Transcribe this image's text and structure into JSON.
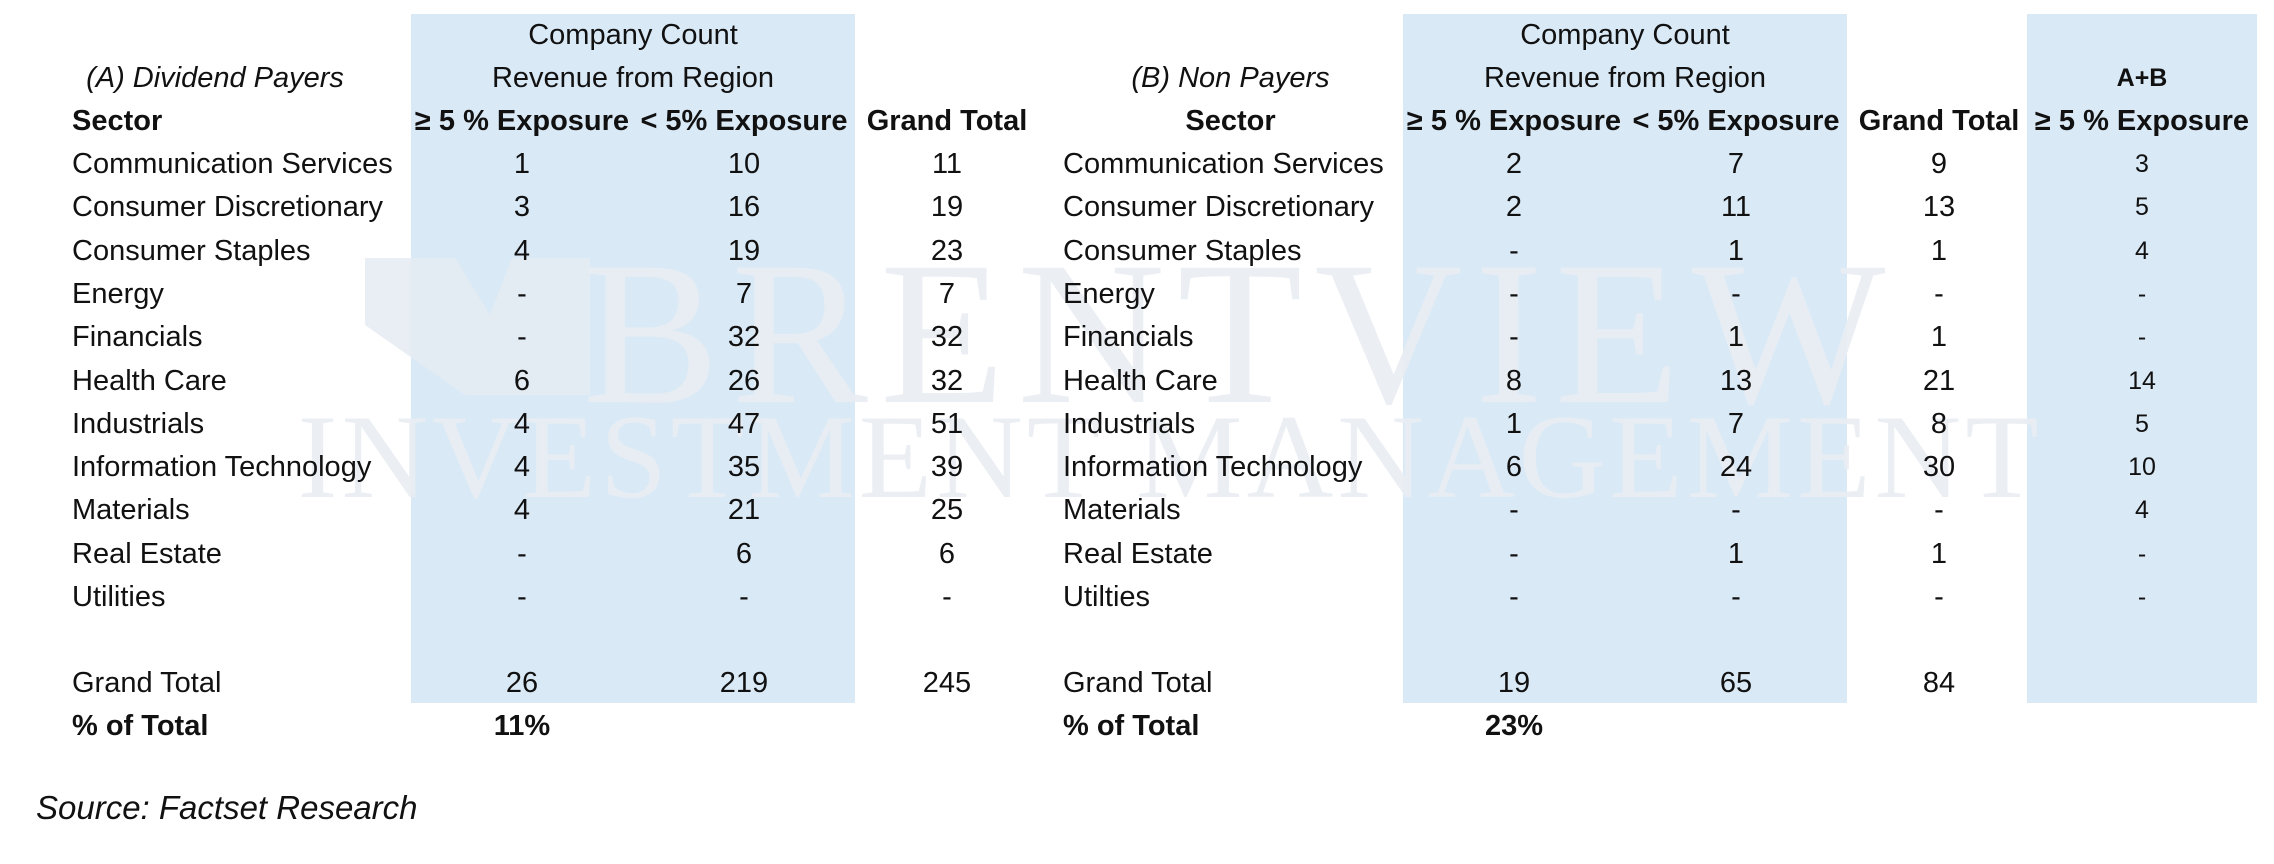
{
  "watermark": {
    "line1": "BRENTVIEW",
    "line2": "INVESTMENT MANAGEMENT"
  },
  "table_a": {
    "title": "(A) Dividend Payers",
    "header_company_count": "Company Count",
    "header_revenue": "Revenue from Region",
    "col_sector": "Sector",
    "col_ge5": "≥ 5 % Exposure",
    "col_lt5": "< 5% Exposure",
    "col_grand": "Grand Total",
    "rows": [
      {
        "sector": "Communication Services",
        "ge5": "1",
        "lt5": "10",
        "total": "11"
      },
      {
        "sector": "Consumer Discretionary",
        "ge5": "3",
        "lt5": "16",
        "total": "19"
      },
      {
        "sector": "Consumer Staples",
        "ge5": "4",
        "lt5": "19",
        "total": "23"
      },
      {
        "sector": "Energy",
        "ge5": "-",
        "lt5": "7",
        "total": "7"
      },
      {
        "sector": "Financials",
        "ge5": "-",
        "lt5": "32",
        "total": "32"
      },
      {
        "sector": "Health Care",
        "ge5": "6",
        "lt5": "26",
        "total": "32"
      },
      {
        "sector": "Industrials",
        "ge5": "4",
        "lt5": "47",
        "total": "51"
      },
      {
        "sector": "Information Technology",
        "ge5": "4",
        "lt5": "35",
        "total": "39"
      },
      {
        "sector": "Materials",
        "ge5": "4",
        "lt5": "21",
        "total": "25"
      },
      {
        "sector": "Real Estate",
        "ge5": "-",
        "lt5": "6",
        "total": "6"
      },
      {
        "sector": "Utilities",
        "ge5": "-",
        "lt5": "-",
        "total": "-"
      }
    ],
    "grand_total": {
      "label": "Grand Total",
      "ge5": "26",
      "lt5": "219",
      "total": "245"
    },
    "pct_total": {
      "label": "% of Total",
      "value": "11%"
    }
  },
  "table_b": {
    "title": "(B) Non Payers",
    "header_company_count": "Company Count",
    "header_revenue": "Revenue from Region",
    "col_sector": "Sector",
    "col_ge5": "≥ 5 % Exposure",
    "col_lt5": "< 5% Exposure",
    "col_grand": "Grand Total",
    "rows": [
      {
        "sector": "Communication Services",
        "ge5": "2",
        "lt5": "7",
        "total": "9"
      },
      {
        "sector": "Consumer Discretionary",
        "ge5": "2",
        "lt5": "11",
        "total": "13"
      },
      {
        "sector": "Consumer Staples",
        "ge5": "-",
        "lt5": "1",
        "total": "1"
      },
      {
        "sector": "Energy",
        "ge5": "-",
        "lt5": "-",
        "total": "-"
      },
      {
        "sector": "Financials",
        "ge5": "-",
        "lt5": "1",
        "total": "1"
      },
      {
        "sector": "Health Care",
        "ge5": "8",
        "lt5": "13",
        "total": "21"
      },
      {
        "sector": "Industrials",
        "ge5": "1",
        "lt5": "7",
        "total": "8"
      },
      {
        "sector": "Information Technology",
        "ge5": "6",
        "lt5": "24",
        "total": "30"
      },
      {
        "sector": "Materials",
        "ge5": "-",
        "lt5": "-",
        "total": "-"
      },
      {
        "sector": "Real Estate",
        "ge5": "-",
        "lt5": "1",
        "total": "1"
      },
      {
        "sector": "Utilties",
        "ge5": "-",
        "lt5": "-",
        "total": "-"
      }
    ],
    "grand_total": {
      "label": "Grand Total",
      "ge5": "19",
      "lt5": "65",
      "total": "84"
    },
    "pct_total": {
      "label": "% of Total",
      "value": "23%"
    }
  },
  "table_ab": {
    "title": "A+B",
    "col_ge5": "≥ 5 % Exposure",
    "values": [
      "3",
      "5",
      "4",
      "-",
      "-",
      "14",
      "5",
      "10",
      "4",
      "-",
      "-"
    ]
  },
  "source": "Source: Factset Research",
  "colors": {
    "shade": "#dae9f6",
    "watermark": "#e9eef3",
    "text": "#111111"
  }
}
